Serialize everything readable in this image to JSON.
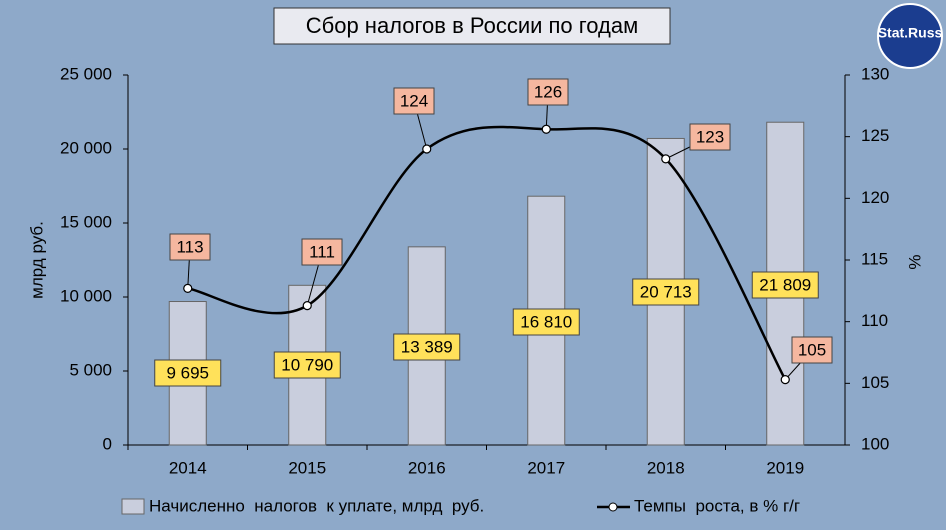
{
  "chart_data": {
    "type": "bar",
    "title": "Сбор налогов в России по годам",
    "logo": "Stat.Russ",
    "categories": [
      "2014",
      "2015",
      "2016",
      "2017",
      "2018",
      "2019"
    ],
    "series": [
      {
        "name": "Начисленно  налогов  к уплате, млрд  руб.",
        "type": "bar",
        "color": "#c9cedd",
        "values": [
          9695,
          10790,
          13389,
          16810,
          20713,
          21809
        ],
        "value_labels": [
          "9 695",
          "10 790",
          "13 389",
          "16 810",
          "20 713",
          "21 809"
        ]
      },
      {
        "name": "Темпы  роста, в % г/г",
        "type": "line",
        "axis": "y2",
        "color": "#000000",
        "values": [
          112.7,
          111.3,
          124.0,
          125.6,
          123.2,
          105.3
        ],
        "value_labels": [
          "113",
          "111",
          "124",
          "126",
          "123",
          "105"
        ]
      }
    ],
    "ylabel": "млрд  руб.",
    "y2label": "%",
    "ylim": [
      0,
      25000
    ],
    "yticks": [
      0,
      {
        "value": 5000,
        "label": "5 000"
      },
      {
        "value": 10000,
        "label": "10 000"
      },
      {
        "value": 15000,
        "label": "15 000"
      },
      {
        "value": 20000,
        "label": "20 000"
      },
      {
        "value": 25000,
        "label": "25 000"
      }
    ],
    "y2lim": [
      100,
      130
    ],
    "y2ticks": [
      100,
      105,
      110,
      115,
      120,
      125,
      130
    ]
  }
}
